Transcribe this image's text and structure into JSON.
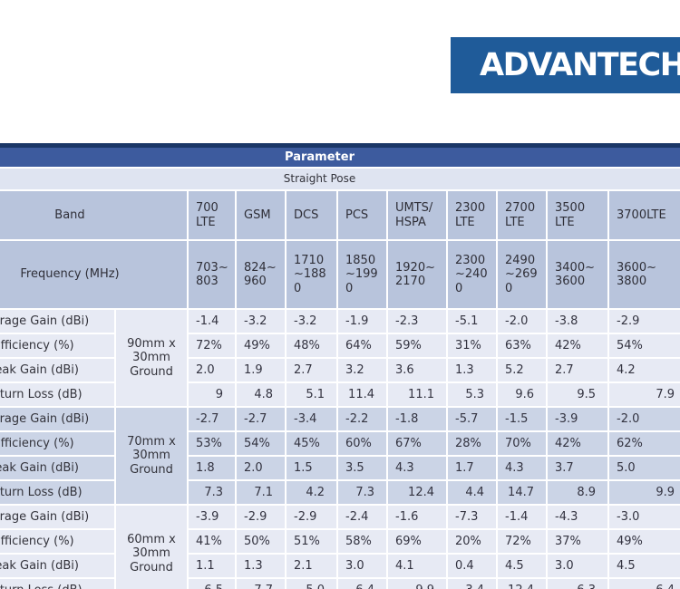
{
  "logo": {
    "text": "ADVANTECH",
    "background": "#1F5B99",
    "text_color": "#FFFFFF"
  },
  "table": {
    "title": "Parameter",
    "subtitle": "Straight Pose",
    "corner_labels": {
      "band": "Band",
      "frequency": "Frequency (MHz)"
    },
    "bands": [
      "700 LTE",
      "GSM",
      "DCS",
      "PCS",
      "UMTS/ HSPA",
      "2300 LTE",
      "2700 LTE",
      "3500 LTE",
      "3700LTE"
    ],
    "frequencies": [
      "703~ 803",
      "824~ 960",
      "1710 ~188 0",
      "1850 ~199 0",
      "1920~ 2170",
      "2300 ~240 0",
      "2490 ~269 0",
      "3400~ 3600",
      "3600~ 3800"
    ],
    "row_labels": [
      "Average Gain (dBi)",
      "Efficiency (%)",
      "Peak Gain (dBi)",
      "Return Loss (dB)"
    ],
    "groups": [
      {
        "ground": "90mm x 30mm Ground",
        "rows": {
          "average_gain": [
            "-1.4",
            "-3.2",
            "-3.2",
            "-1.9",
            "-2.3",
            "-5.1",
            "-2.0",
            "-3.8",
            "-2.9"
          ],
          "efficiency": [
            "72%",
            "49%",
            "48%",
            "64%",
            "59%",
            "31%",
            "63%",
            "42%",
            "54%"
          ],
          "peak_gain": [
            "2.0",
            "1.9",
            "2.7",
            "3.2",
            "3.6",
            "1.3",
            "5.2",
            "2.7",
            "4.2"
          ],
          "return_loss": [
            "9",
            "4.8",
            "5.1",
            "11.4",
            "11.1",
            "5.3",
            "9.6",
            "9.5",
            "7.9"
          ]
        }
      },
      {
        "ground": "70mm x 30mm Ground",
        "rows": {
          "average_gain": [
            "-2.7",
            "-2.7",
            "-3.4",
            "-2.2",
            "-1.8",
            "-5.7",
            "-1.5",
            "-3.9",
            "-2.0"
          ],
          "efficiency": [
            "53%",
            "54%",
            "45%",
            "60%",
            "67%",
            "28%",
            "70%",
            "42%",
            "62%"
          ],
          "peak_gain": [
            "1.8",
            "2.0",
            "1.5",
            "3.5",
            "4.3",
            "1.7",
            "4.3",
            "3.7",
            "5.0"
          ],
          "return_loss": [
            "7.3",
            "7.1",
            "4.2",
            "7.3",
            "12.4",
            "4.4",
            "14.7",
            "8.9",
            "9.9"
          ]
        }
      },
      {
        "ground": "60mm x 30mm Ground",
        "rows": {
          "average_gain": [
            "-3.9",
            "-2.9",
            "-2.9",
            "-2.4",
            "-1.6",
            "-7.3",
            "-1.4",
            "-4.3",
            "-3.0"
          ],
          "efficiency": [
            "41%",
            "50%",
            "51%",
            "58%",
            "69%",
            "20%",
            "72%",
            "37%",
            "49%"
          ],
          "peak_gain": [
            "1.1",
            "1.3",
            "2.1",
            "3.0",
            "4.1",
            "0.4",
            "4.5",
            "3.0",
            "4.5"
          ],
          "return_loss": [
            "6.5",
            "7.7",
            "5.0",
            "6.4",
            "9.9",
            "3.4",
            "12.4",
            "6.3",
            "6.4"
          ]
        }
      }
    ],
    "colors": {
      "title_bar": "#3D5B9E",
      "title_top_border": "#1B3767",
      "subtitle_row": "#DFE4F1",
      "header_row": "#B8C4DC",
      "group_light": "#E7EAF4",
      "group_dark": "#CBD4E6",
      "text": "#333340"
    }
  }
}
